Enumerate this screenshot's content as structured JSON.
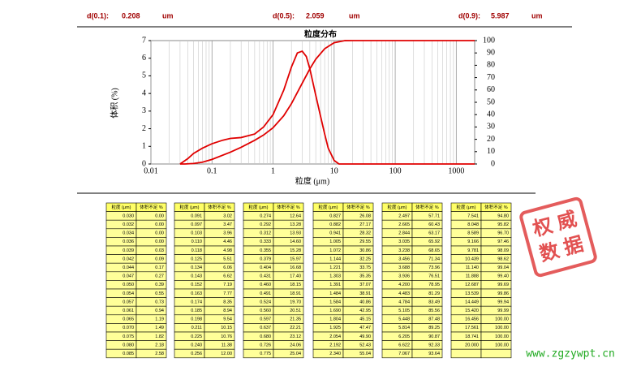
{
  "header": {
    "items": [
      {
        "label": "d(0.1):",
        "value": "0.208",
        "unit": "um"
      },
      {
        "label": "d(0.5):",
        "value": "2.059",
        "unit": "um"
      },
      {
        "label": "d(0.9):",
        "value": "5.987",
        "unit": "um"
      }
    ]
  },
  "chart_data": {
    "type": "line",
    "title": "粒度分布",
    "y_label": "体积 (%)",
    "x_label": "粒度 (μm)",
    "log_x": true,
    "grid": "x",
    "xlim": [
      0.01,
      2000
    ],
    "xticks": [
      {
        "value": 0.01,
        "label": "0.01"
      },
      {
        "value": 0.1,
        "label": "0.1"
      },
      1,
      10,
      100,
      1000
    ],
    "ylim": [
      0,
      7
    ],
    "yticks": [
      0,
      1,
      2,
      3,
      4,
      5,
      6,
      7
    ],
    "y2lim": [
      0,
      100
    ],
    "y2ticks": [
      0,
      10,
      20,
      30,
      40,
      50,
      60,
      70,
      80,
      90,
      100
    ],
    "series": [
      {
        "color": "#e00000",
        "x": [
          0.03,
          0.04,
          0.05,
          0.07,
          0.1,
          0.15,
          0.2,
          0.3,
          0.5,
          0.7,
          1,
          1.5,
          2,
          2.5,
          3,
          3.5,
          4,
          5,
          6,
          7,
          8,
          10,
          12,
          15,
          20,
          2000
        ],
        "values": [
          0,
          0.3,
          0.6,
          0.9,
          1.15,
          1.35,
          1.45,
          1.5,
          1.7,
          2.1,
          2.8,
          4.2,
          5.5,
          6.3,
          6.4,
          6.1,
          5.4,
          3.9,
          2.7,
          1.7,
          0.9,
          0.2,
          0,
          0,
          0,
          0
        ]
      },
      {
        "color": "#e00000",
        "axis": "y2",
        "x": [
          0.03,
          0.036,
          0.05,
          0.07,
          0.1,
          0.2,
          0.3,
          0.5,
          0.7,
          1,
          1.5,
          2,
          3,
          4,
          5,
          7,
          10,
          15,
          20,
          2000
        ],
        "values": [
          0,
          0,
          0.39,
          1.49,
          3.7,
          9.6,
          13.5,
          19.2,
          23.5,
          29.4,
          39.2,
          48.9,
          65.4,
          77.1,
          84.9,
          93.4,
          98.3,
          99.97,
          100,
          100
        ]
      }
    ]
  },
  "table_headers": [
    "粒度 (μm)",
    "体积不足 %"
  ],
  "tables": [
    [
      [
        "0.030",
        "0.00"
      ],
      [
        "0.032",
        "0.00"
      ],
      [
        "0.034",
        "0.00"
      ],
      [
        "0.036",
        "0.00"
      ],
      [
        "0.039",
        "0.03"
      ],
      [
        "0.042",
        "0.09"
      ],
      [
        "0.044",
        "0.17"
      ],
      [
        "0.047",
        "0.27"
      ],
      [
        "0.050",
        "0.39"
      ],
      [
        "0.054",
        "0.55"
      ],
      [
        "0.057",
        "0.73"
      ],
      [
        "0.061",
        "0.94"
      ],
      [
        "0.065",
        "1.19"
      ],
      [
        "0.070",
        "1.49"
      ],
      [
        "0.075",
        "1.82"
      ],
      [
        "0.080",
        "2.18"
      ],
      [
        "0.085",
        "2.58"
      ]
    ],
    [
      [
        "0.091",
        "3.02"
      ],
      [
        "0.097",
        "3.47"
      ],
      [
        "0.103",
        "3.96"
      ],
      [
        "0.110",
        "4.46"
      ],
      [
        "0.118",
        "4.98"
      ],
      [
        "0.125",
        "5.51"
      ],
      [
        "0.134",
        "6.06"
      ],
      [
        "0.143",
        "6.62"
      ],
      [
        "0.152",
        "7.19"
      ],
      [
        "0.163",
        "7.77"
      ],
      [
        "0.174",
        "8.35"
      ],
      [
        "0.185",
        "8.94"
      ],
      [
        "0.198",
        "9.54"
      ],
      [
        "0.211",
        "10.15"
      ],
      [
        "0.225",
        "10.76"
      ],
      [
        "0.240",
        "11.38"
      ],
      [
        "0.256",
        "12.00"
      ]
    ],
    [
      [
        "0.274",
        "12.64"
      ],
      [
        "0.292",
        "13.28"
      ],
      [
        "0.312",
        "13.93"
      ],
      [
        "0.333",
        "14.60"
      ],
      [
        "0.355",
        "15.28"
      ],
      [
        "0.379",
        "15.97"
      ],
      [
        "0.404",
        "16.68"
      ],
      [
        "0.431",
        "17.40"
      ],
      [
        "0.460",
        "18.15"
      ],
      [
        "0.491",
        "18.91"
      ],
      [
        "0.524",
        "19.70"
      ],
      [
        "0.560",
        "20.51"
      ],
      [
        "0.597",
        "21.35"
      ],
      [
        "0.637",
        "22.21"
      ],
      [
        "0.680",
        "23.12"
      ],
      [
        "0.726",
        "24.06"
      ],
      [
        "0.775",
        "25.04"
      ]
    ],
    [
      [
        "0.827",
        "26.08"
      ],
      [
        "0.882",
        "27.17"
      ],
      [
        "0.941",
        "28.32"
      ],
      [
        "1.005",
        "29.55"
      ],
      [
        "1.072",
        "30.86"
      ],
      [
        "1.144",
        "32.25"
      ],
      [
        "1.221",
        "33.75"
      ],
      [
        "1.303",
        "35.35"
      ],
      [
        "1.391",
        "37.07"
      ],
      [
        "1.484",
        "38.91"
      ],
      [
        "1.584",
        "40.86"
      ],
      [
        "1.690",
        "42.95"
      ],
      [
        "1.804",
        "45.15"
      ],
      [
        "1.925",
        "47.47"
      ],
      [
        "2.054",
        "49.90"
      ],
      [
        "2.192",
        "52.43"
      ],
      [
        "2.340",
        "55.04"
      ]
    ],
    [
      [
        "2.497",
        "57.71"
      ],
      [
        "2.665",
        "60.43"
      ],
      [
        "2.844",
        "63.17"
      ],
      [
        "3.035",
        "65.92"
      ],
      [
        "3.238",
        "68.65"
      ],
      [
        "3.456",
        "71.34"
      ],
      [
        "3.688",
        "73.96"
      ],
      [
        "3.936",
        "76.51"
      ],
      [
        "4.200",
        "78.95"
      ],
      [
        "4.483",
        "81.29"
      ],
      [
        "4.784",
        "83.49"
      ],
      [
        "5.105",
        "85.56"
      ],
      [
        "5.448",
        "87.48"
      ],
      [
        "5.814",
        "89.25"
      ],
      [
        "6.205",
        "90.87"
      ],
      [
        "6.622",
        "92.33"
      ],
      [
        "7.067",
        "93.64"
      ]
    ],
    [
      [
        "7.541",
        "94.80"
      ],
      [
        "8.048",
        "95.82"
      ],
      [
        "8.589",
        "96.70"
      ],
      [
        "9.166",
        "97.46"
      ],
      [
        "9.781",
        "98.09"
      ],
      [
        "10.439",
        "98.62"
      ],
      [
        "11.140",
        "99.04"
      ],
      [
        "11.888",
        "99.40"
      ],
      [
        "12.687",
        "99.69"
      ],
      [
        "13.539",
        "99.86"
      ],
      [
        "14.449",
        "99.94"
      ],
      [
        "15.420",
        "99.99"
      ],
      [
        "16.456",
        "100.00"
      ],
      [
        "17.561",
        "100.00"
      ],
      [
        "18.741",
        "100.00"
      ],
      [
        "20.000",
        "100.00"
      ]
    ]
  ],
  "watermark": {
    "stamp": [
      "权 威",
      "数 据"
    ],
    "site": "www.zgzywpt.cn"
  }
}
